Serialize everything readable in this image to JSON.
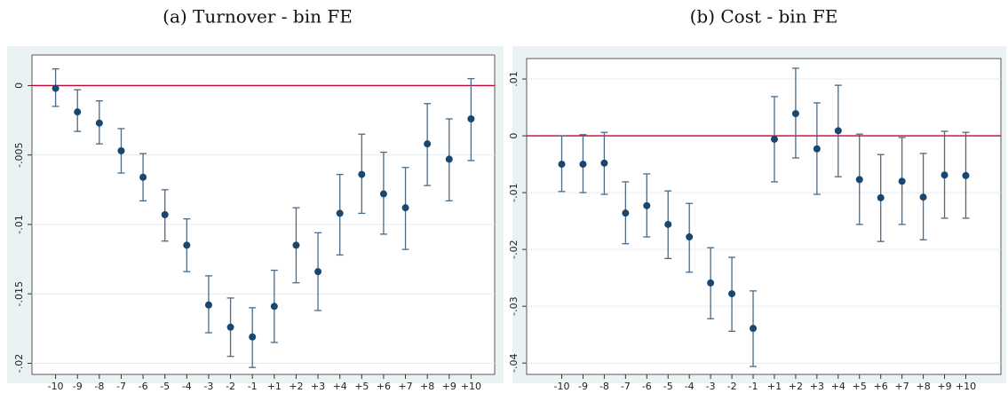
{
  "chart_data": [
    {
      "type": "errorbar",
      "title": "(a) Turnover - bin FE",
      "categories": [
        "-10",
        "-9",
        "-8",
        "-7",
        "-6",
        "-5",
        "-4",
        "-3",
        "-2",
        "-1",
        "+1",
        "+2",
        "+3",
        "+4",
        "+5",
        "+6",
        "+7",
        "+8",
        "+9",
        "+10"
      ],
      "values": [
        -0.0002,
        -0.0019,
        -0.0027,
        -0.0047,
        -0.0066,
        -0.0093,
        -0.0115,
        -0.0158,
        -0.0174,
        -0.0181,
        -0.0159,
        -0.0115,
        -0.0134,
        -0.0092,
        -0.0064,
        -0.0078,
        -0.0088,
        -0.0042,
        -0.0053,
        -0.0024
      ],
      "upper": [
        0.0012,
        -0.0003,
        -0.0011,
        -0.0031,
        -0.0049,
        -0.0075,
        -0.0096,
        -0.0137,
        -0.0153,
        -0.016,
        -0.0133,
        -0.0088,
        -0.0106,
        -0.0064,
        -0.0035,
        -0.0048,
        -0.0059,
        -0.0013,
        -0.0024,
        0.0005
      ],
      "lower": [
        -0.0015,
        -0.0033,
        -0.0042,
        -0.0063,
        -0.0083,
        -0.0112,
        -0.0134,
        -0.0178,
        -0.0195,
        -0.0203,
        -0.0185,
        -0.0142,
        -0.0162,
        -0.0122,
        -0.0092,
        -0.0107,
        -0.0118,
        -0.0072,
        -0.0083,
        -0.0054
      ],
      "color": "#1a476f",
      "bar_color": "#4a6a86",
      "hline": 0,
      "hline_color": "#c10534",
      "ylim": [
        -0.0208,
        0.0022
      ],
      "yticks": [
        0,
        {
          "value": -0.005,
          "label": "-.005"
        },
        {
          "value": -0.01,
          "label": "-.01"
        },
        {
          "value": -0.015,
          "label": "-.015"
        },
        {
          "value": -0.02,
          "label": "-.02"
        }
      ],
      "grid": true
    },
    {
      "type": "errorbar",
      "title": "(b) Cost - bin FE",
      "categories": [
        "-10",
        "-9",
        "-8",
        "-7",
        "-6",
        "-5",
        "-4",
        "-3",
        "-2",
        "-1",
        "+1",
        "+2",
        "+3",
        "+4",
        "+5",
        "+6",
        "+7",
        "+8",
        "+9",
        "+10"
      ],
      "values": [
        -0.005,
        -0.005,
        -0.0048,
        -0.0136,
        -0.0123,
        -0.0156,
        -0.0178,
        -0.0259,
        -0.0278,
        -0.0339,
        -0.0006,
        0.0039,
        -0.0023,
        0.0009,
        -0.0077,
        -0.0109,
        -0.008,
        -0.0108,
        -0.0069,
        -0.007
      ],
      "upper": [
        0,
        0.0002,
        0.0006,
        -0.0081,
        -0.0067,
        -0.0097,
        -0.0119,
        -0.0197,
        -0.0214,
        -0.0273,
        0.0069,
        0.0119,
        0.0058,
        0.0089,
        0.0003,
        -0.0033,
        -0.0003,
        -0.0031,
        0.0008,
        0.0006
      ],
      "lower": [
        -0.0098,
        -0.01,
        -0.0103,
        -0.019,
        -0.0178,
        -0.0216,
        -0.024,
        -0.0322,
        -0.0344,
        -0.0406,
        -0.0081,
        -0.0039,
        -0.0103,
        -0.0072,
        -0.0156,
        -0.0186,
        -0.0156,
        -0.0183,
        -0.0145,
        -0.0145
      ],
      "color": "#1a476f",
      "bar_color": "#4a6a86",
      "hline": 0,
      "hline_color": "#c10534",
      "ylim": [
        -0.042,
        0.0136
      ],
      "yticks": [
        {
          "value": 0.01,
          "label": ".01"
        },
        0,
        {
          "value": -0.01,
          "label": "-.01"
        },
        {
          "value": -0.02,
          "label": "-.02"
        },
        {
          "value": -0.03,
          "label": "-.03"
        },
        {
          "value": -0.04,
          "label": "-.04"
        }
      ],
      "grid": true
    }
  ]
}
